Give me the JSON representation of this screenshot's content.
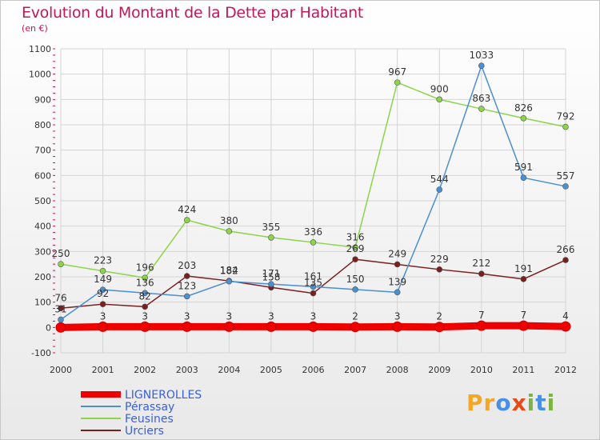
{
  "title": "Evolution du Montant de la Dette par Habitant",
  "subtitle": "(en €)",
  "logo": {
    "text": "Proxiti",
    "letters": [
      {
        "ch": "P",
        "color": "#f5a623"
      },
      {
        "ch": "r",
        "color": "#f5a623"
      },
      {
        "ch": "o",
        "color": "#4a90e2"
      },
      {
        "ch": "x",
        "color": "#e64a19"
      },
      {
        "ch": "i",
        "color": "#7cb342"
      },
      {
        "ch": "t",
        "color": "#4a90e2"
      },
      {
        "ch": "i",
        "color": "#7cb342"
      }
    ]
  },
  "chart_data": {
    "type": "line",
    "x": [
      2000,
      2001,
      2002,
      2003,
      2004,
      2005,
      2006,
      2007,
      2008,
      2009,
      2010,
      2011,
      2012
    ],
    "ylim": [
      -100,
      1100
    ],
    "yticks": [
      -100,
      0,
      100,
      200,
      300,
      400,
      500,
      600,
      700,
      800,
      900,
      1000,
      1100
    ],
    "grid": true,
    "legend_position": "bottom-left",
    "series": [
      {
        "name": "LIGNEROLLES",
        "color": "#ee0000",
        "values": [
          0,
          3,
          3,
          3,
          3,
          3,
          3,
          2,
          3,
          2,
          7,
          7,
          4
        ]
      },
      {
        "name": "Pérassay",
        "color": "#4a8fd0",
        "values": [
          31,
          149,
          136,
          123,
          182,
          171,
          161,
          150,
          139,
          544,
          1033,
          591,
          557
        ]
      },
      {
        "name": "Feusines",
        "color": "#8cd44a",
        "values": [
          250,
          223,
          196,
          424,
          380,
          355,
          336,
          316,
          967,
          900,
          863,
          826,
          792
        ]
      },
      {
        "name": "Urciers",
        "color": "#7a1f1f",
        "values": [
          76,
          92,
          82,
          203,
          184,
          158,
          135,
          269,
          249,
          229,
          212,
          191,
          266
        ]
      }
    ],
    "labels": [
      {
        "series": 0,
        "values": [
          "",
          "3",
          "3",
          "3",
          "3",
          "3",
          "3",
          "2",
          "3",
          "2",
          "7",
          "7",
          "4"
        ]
      },
      {
        "series": 1,
        "values": [
          "31",
          "149",
          "136",
          "123",
          "182",
          "171",
          "161",
          "150",
          "139",
          "544",
          "1033",
          "591",
          "557"
        ]
      },
      {
        "series": 2,
        "values": [
          "250",
          "223",
          "196",
          "424",
          "380",
          "355",
          "336",
          "316",
          "967",
          "900",
          "863",
          "826",
          "792"
        ]
      },
      {
        "series": 3,
        "values": [
          "76",
          "92",
          "82",
          "203",
          "184",
          "158",
          "135",
          "269",
          "249",
          "229",
          "212",
          "191",
          "266"
        ]
      }
    ]
  }
}
